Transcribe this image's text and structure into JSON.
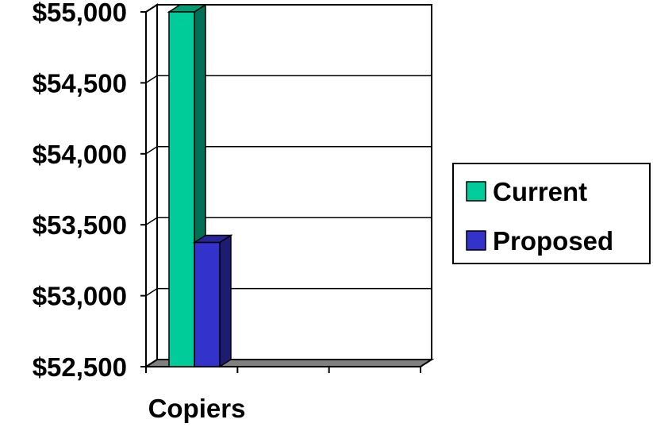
{
  "chart_data": {
    "type": "bar",
    "style": "3d-clustered-column",
    "categories": [
      "Copiers"
    ],
    "series": [
      {
        "name": "Current",
        "values": [
          55000
        ],
        "color": "#00CC99"
      },
      {
        "name": "Proposed",
        "values": [
          53375
        ],
        "color": "#3333CC"
      }
    ],
    "ylim": [
      52500,
      55000
    ],
    "y_ticks": [
      "$52,500",
      "$53,000",
      "$53,500",
      "$54,000",
      "$54,500",
      "$55,000"
    ],
    "y_tick_values": [
      52500,
      53000,
      53500,
      54000,
      54500,
      55000
    ],
    "grid": true,
    "legend": "right",
    "colors": {
      "floor": "#808080",
      "gridline": "#000000",
      "background": "#FFFFFF"
    }
  }
}
